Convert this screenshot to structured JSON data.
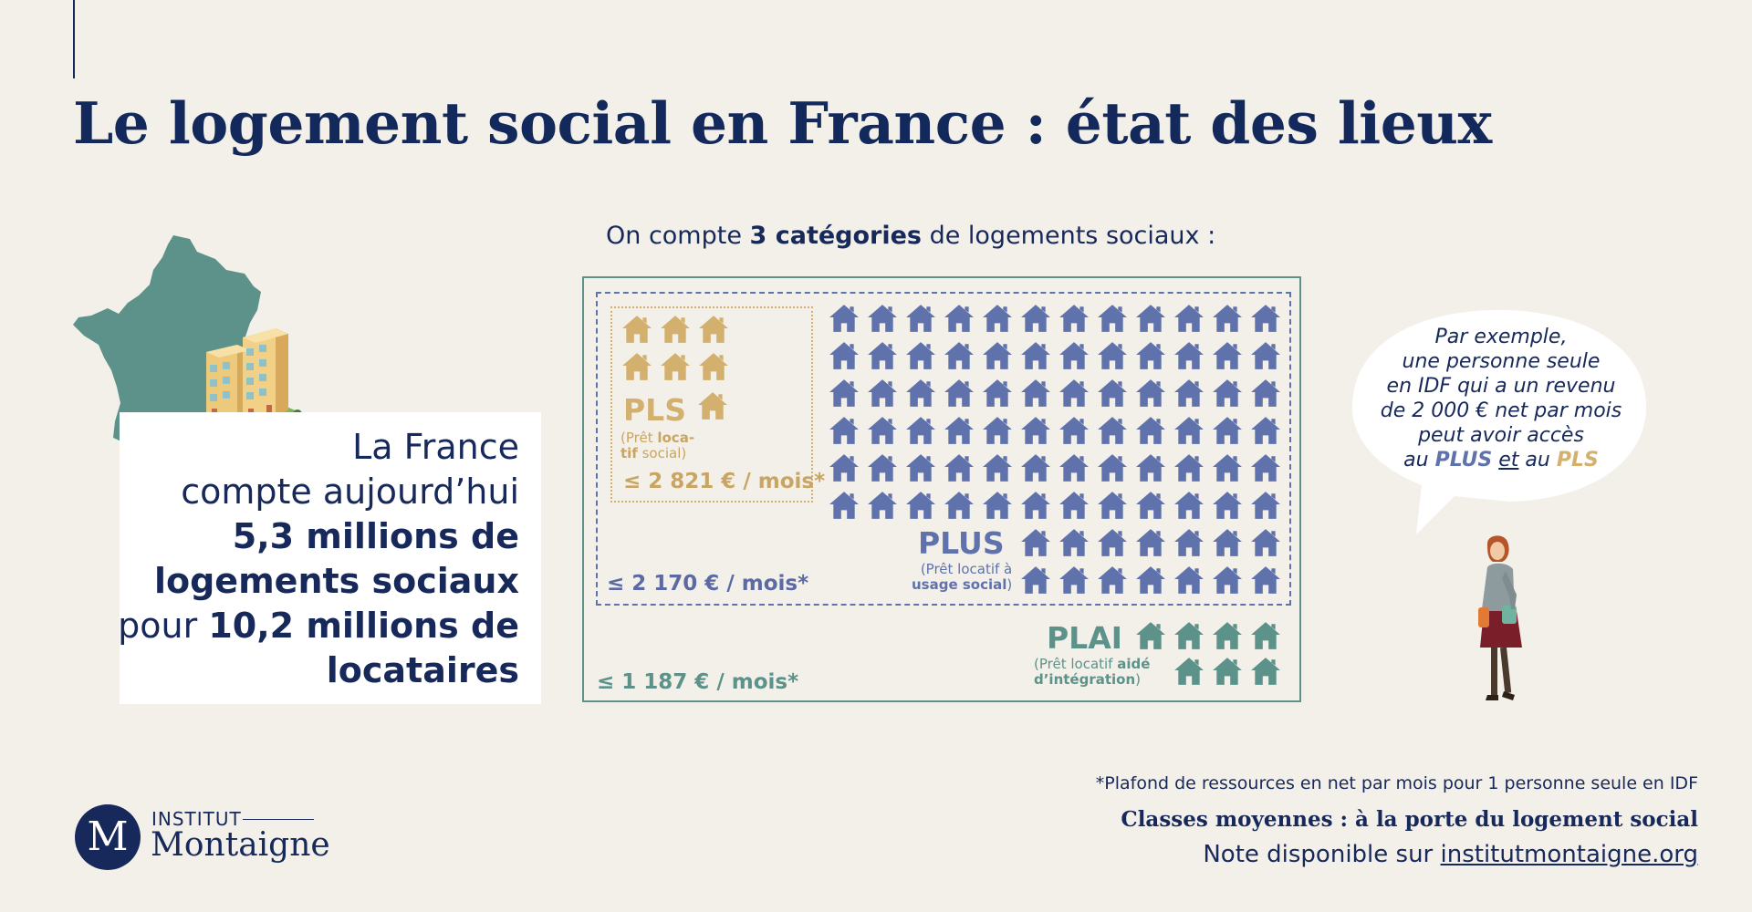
{
  "header": {
    "title": "Le logement social en France : état des lieux"
  },
  "subtitle": {
    "before": "On compte ",
    "bold": "3 catégories",
    "after": " de logements sociaux :"
  },
  "stat": {
    "line1": "La France",
    "line2": "compte aujourd’hui",
    "line3": "5,3 millions de",
    "line4": "logements sociaux",
    "line5_normal": "pour ",
    "line5_bold": "10,2 millions de",
    "line6": "locataires"
  },
  "categories": {
    "pls": {
      "label": "PLS",
      "desc_a": "(Prêt ",
      "desc_b": "loca-",
      "desc_c": "tif",
      "desc_d": " social)",
      "price": "≤  2 821 € / mois*",
      "color": "#d3b06e"
    },
    "plus": {
      "label": "PLUS",
      "desc_line1": "(Prêt locatif à",
      "desc_line2_bold": "usage social",
      "desc_line2_end": ")",
      "price": "≤  2 170 € / mois*",
      "color": "#6072ab"
    },
    "plai": {
      "label": "PLAI",
      "desc_a": "(Prêt locatif ",
      "desc_b": "aidé",
      "desc_c": "d’intégration",
      "desc_d": ")",
      "price": "≤ 1 187 € / mois*",
      "color": "#5c9289"
    }
  },
  "bubble": {
    "line1": "Par exemple,",
    "line2": "une personne seule",
    "line3": "en IDF qui a un revenu",
    "line4": "de 2 000 € net par mois",
    "line5": "peut avoir accès",
    "line6_a": "au ",
    "line6_plus": "PLUS",
    "line6_b": " ",
    "line6_et": "et",
    "line6_c": " au ",
    "line6_pls": "PLS"
  },
  "footer": {
    "footnote": "*Plafond de ressources en net par mois pour 1 personne seule en IDF",
    "note_title": "Classes moyennes : à la porte du logement social",
    "note_avail": "Note disponible sur ",
    "note_link": "institutmontaigne.org"
  },
  "logo": {
    "letter": "M",
    "line1": "INSTITUT",
    "line2": "Montaigne"
  },
  "icons": {
    "france": "france-map-icon",
    "building": "apartment-building-icon",
    "house": "house-icon",
    "woman": "woman-figure-icon"
  },
  "colors": {
    "navy": "#17285a",
    "pls_gold": "#d3b06e",
    "plus_blue": "#6072ab",
    "plai_teal": "#5c9289",
    "background": "#f3f0ea"
  }
}
